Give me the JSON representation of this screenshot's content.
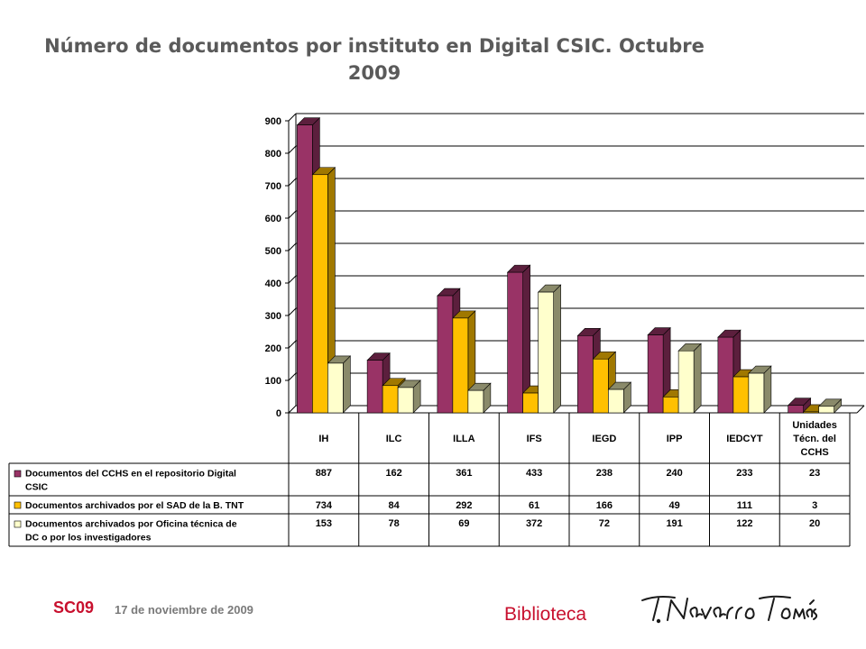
{
  "title_line1": "Número de documentos por instituto en Digital CSIC. Octubre",
  "title_line2": "2009",
  "footer": {
    "code": "SC09",
    "date": "17 de noviembre de 2009",
    "library": "Biblioteca",
    "signature": "T. Navarro Tomás"
  },
  "chart_data": {
    "type": "bar",
    "title": "Número de documentos por instituto en Digital CSIC. Octubre 2009",
    "categories": [
      "IH",
      "ILC",
      "ILLA",
      "IFS",
      "IEGD",
      "IPP",
      "IEDCYT",
      "Unidades Técn. del CCHS"
    ],
    "category_lines": [
      [
        "IH"
      ],
      [
        "ILC"
      ],
      [
        "ILLA"
      ],
      [
        "IFS"
      ],
      [
        "IEGD"
      ],
      [
        "IPP"
      ],
      [
        "IEDCYT"
      ],
      [
        "Unidades",
        "Técn. del",
        "CCHS"
      ]
    ],
    "series": [
      {
        "name": "Documentos del CCHS en el repositorio Digital CSIC",
        "name_lines": [
          "Documentos del CCHS en el repositorio Digital",
          "CSIC"
        ],
        "color": "#993366",
        "dark": "#5c1f3d",
        "values": [
          887,
          162,
          361,
          433,
          238,
          240,
          233,
          23
        ]
      },
      {
        "name": "Documentos archivados por el SAD de la B. TNT",
        "name_lines": [
          "Documentos archivados por el SAD de la B. TNT"
        ],
        "color": "#ffc000",
        "dark": "#a07800",
        "values": [
          734,
          84,
          292,
          61,
          166,
          49,
          111,
          3
        ]
      },
      {
        "name": "Documentos archivados por Oficina técnica de DC o por los investigadores",
        "name_lines": [
          "Documentos archivados por Oficina técnica de",
          "DC o por los investigadores"
        ],
        "color": "#ffffcc",
        "dark": "#8a8a6a",
        "values": [
          153,
          78,
          69,
          372,
          72,
          191,
          122,
          20
        ]
      }
    ],
    "ylim": [
      0,
      900
    ],
    "yticks": [
      0,
      100,
      200,
      300,
      400,
      500,
      600,
      700,
      800,
      900
    ],
    "grid": true,
    "legend": "data table below chart"
  }
}
